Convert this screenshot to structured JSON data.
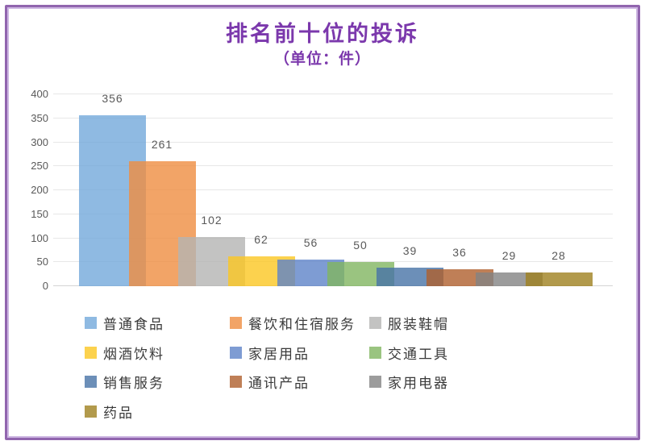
{
  "chart_data": {
    "type": "bar",
    "title": "排名前十位的投诉",
    "subtitle": "（单位：件）",
    "title_color": "#7b38ac",
    "ylim": [
      0,
      400
    ],
    "ytick_step": 50,
    "grid": true,
    "legend_position": "bottom",
    "bar_alpha": 0.8,
    "categories": [
      "普通食品",
      "餐饮和住宿服务",
      "服装鞋帽",
      "烟酒饮料",
      "家居用品",
      "交通工具",
      "销售服务",
      "通讯产品",
      "家用电器",
      "药品"
    ],
    "values": [
      356,
      261,
      102,
      62,
      56,
      50,
      39,
      36,
      29,
      28
    ],
    "series": [
      {
        "name": "普通食品",
        "value": 356,
        "color": "#8fbae2",
        "fill_rgb": "115,169,219"
      },
      {
        "name": "餐饮和住宿服务",
        "value": 261,
        "color": "#f2a467",
        "fill_rgb": "239,141,65"
      },
      {
        "name": "服装鞋帽",
        "value": 102,
        "color": "#c3c3c2",
        "fill_rgb": "180,180,179"
      },
      {
        "name": "烟酒饮料",
        "value": 62,
        "color": "#fcd24e",
        "fill_rgb": "251,199,34"
      },
      {
        "name": "家居用品",
        "value": 56,
        "color": "#7e9cd3",
        "fill_rgb": "94,131,200"
      },
      {
        "name": "交通工具",
        "value": 50,
        "color": "#9ac480",
        "fill_rgb": "129,181,96"
      },
      {
        "name": "销售服务",
        "value": 39,
        "color": "#6c8fb8",
        "fill_rgb": "71,115,166"
      },
      {
        "name": "通讯产品",
        "value": 36,
        "color": "#bf7f57",
        "fill_rgb": "175,95,45"
      },
      {
        "name": "家用电器",
        "value": 29,
        "color": "#9c9c9c",
        "fill_rgb": "131,131,131"
      },
      {
        "name": "药品",
        "value": 28,
        "color": "#b29a4c",
        "fill_rgb": "159,129,31"
      }
    ],
    "axis_label_color": "#595959",
    "data_label_color": "#595959",
    "gridline_color": "#e7e7e7",
    "baseline_color": "#d4d4d4"
  },
  "frame": {
    "outer_color": "#9165ae",
    "inner_color": "#cdb6e2"
  }
}
